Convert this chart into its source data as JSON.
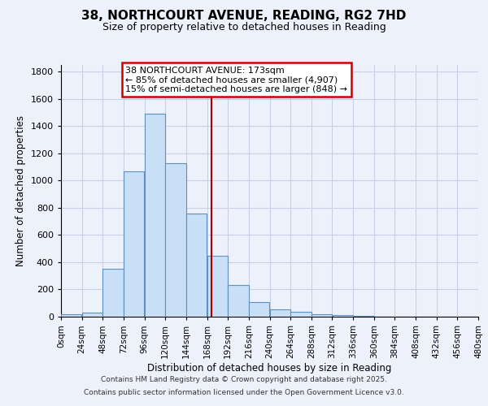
{
  "title": "38, NORTHCOURT AVENUE, READING, RG2 7HD",
  "subtitle": "Size of property relative to detached houses in Reading",
  "xlabel": "Distribution of detached houses by size in Reading",
  "ylabel": "Number of detached properties",
  "bar_color": "#c8dff5",
  "bar_edge_color": "#6090c0",
  "bins": [
    0,
    24,
    48,
    72,
    96,
    120,
    144,
    168,
    192,
    216,
    240,
    264,
    288,
    312,
    336,
    360,
    384,
    408,
    432,
    456,
    480
  ],
  "counts": [
    15,
    30,
    355,
    1070,
    1490,
    1130,
    760,
    445,
    230,
    110,
    55,
    35,
    20,
    10,
    5,
    0,
    0,
    0,
    0,
    0
  ],
  "property_size": 173,
  "vline_color": "#aa0000",
  "annotation_title": "38 NORTHCOURT AVENUE: 173sqm",
  "annotation_line1": "← 85% of detached houses are smaller (4,907)",
  "annotation_line2": "15% of semi-detached houses are larger (848) →",
  "annotation_box_facecolor": "#ffffff",
  "annotation_box_edgecolor": "#cc0000",
  "ylim": [
    0,
    1850
  ],
  "yticks": [
    0,
    200,
    400,
    600,
    800,
    1000,
    1200,
    1400,
    1600,
    1800
  ],
  "background_color": "#edf1fb",
  "grid_color": "#c8d0e8",
  "footer_line1": "Contains HM Land Registry data © Crown copyright and database right 2025.",
  "footer_line2": "Contains public sector information licensed under the Open Government Licence v3.0."
}
